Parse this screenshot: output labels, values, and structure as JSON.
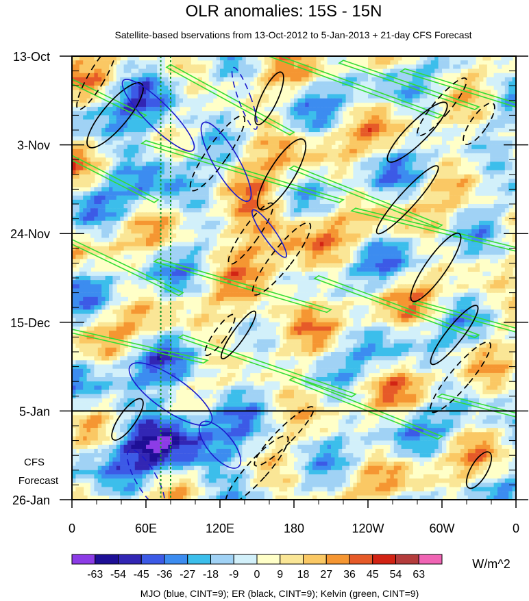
{
  "chart_data": {
    "type": "heatmap",
    "title": "OLR anomalies: 15S - 15N",
    "subtitle": "Satellite-based bservations from 13-Oct-2012 to 5-Jan-2013 + 21-day CFS Forecast",
    "xlabel": "",
    "ylabel": "",
    "x_ticks": [
      "0",
      "60E",
      "120E",
      "180",
      "120W",
      "60W",
      "0"
    ],
    "x_tick_values": [
      0,
      60,
      120,
      180,
      240,
      300,
      360
    ],
    "xlim": [
      0,
      360
    ],
    "y_ticks": [
      "13-Oct",
      "3-Nov",
      "24-Nov",
      "15-Dec",
      "5-Jan",
      "26-Jan"
    ],
    "y_tick_days": [
      0,
      21,
      42,
      63,
      84,
      105
    ],
    "ylim_days": [
      0,
      105
    ],
    "forecast_start_day": 84,
    "forecast_label": [
      "CFS",
      "Forecast"
    ],
    "colorbar": {
      "labels": [
        "-63",
        "-54",
        "-45",
        "-36",
        "-27",
        "-18",
        "-9",
        "0",
        "9",
        "18",
        "27",
        "36",
        "45",
        "54",
        "63"
      ],
      "colors": [
        "#8c3ce6",
        "#1e0f96",
        "#3226b4",
        "#3c5ae6",
        "#3c8cf0",
        "#3cbeeb",
        "#a0d2f5",
        "#d2f0fa",
        "#ffffc8",
        "#fae696",
        "#fac864",
        "#f59632",
        "#e65a28",
        "#d22314",
        "#b43c3c",
        "#f064b4"
      ],
      "units": "W/m^2"
    },
    "reference_lines_lon": [
      72,
      80
    ],
    "reference_line_color": "#1a9a2a",
    "footer": "MJO (blue, CINT=9); ER (black, CINT=9); Kelvin (green, CINT=9)",
    "series": [
      {
        "name": "MJO",
        "color": "#1a1acc"
      },
      {
        "name": "ER",
        "color": "#000000"
      },
      {
        "name": "Kelvin",
        "color": "#33dd33"
      }
    ]
  }
}
